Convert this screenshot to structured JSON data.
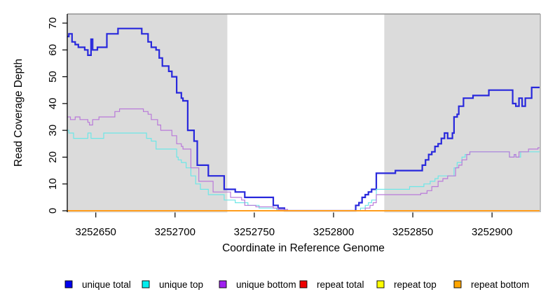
{
  "chart_data": {
    "type": "line",
    "step": "after",
    "title": "",
    "xlabel": "Coordinate in Reference Genome",
    "ylabel": "Read Coverage Depth",
    "xlim": [
      3252632,
      3252930
    ],
    "ylim": [
      0,
      70
    ],
    "x_ticks": [
      3252650,
      3252700,
      3252750,
      3252800,
      3252850,
      3252900
    ],
    "y_ticks": [
      0,
      10,
      20,
      30,
      40,
      50,
      60,
      70
    ],
    "grid": false,
    "legend_position": "bottom",
    "shaded_regions": [
      {
        "from": 3252632,
        "to": 3252733,
        "color": "#dbdbdb"
      },
      {
        "from": 3252832,
        "to": 3252930,
        "color": "#dbdbdb"
      }
    ],
    "series": [
      {
        "name": "unique total",
        "color": "#2828dc",
        "legend_color": "#0000ee",
        "width": 2.2,
        "points": [
          [
            3252632,
            65
          ],
          [
            3252633,
            66
          ],
          [
            3252635,
            63
          ],
          [
            3252637,
            62
          ],
          [
            3252639,
            61
          ],
          [
            3252643,
            60
          ],
          [
            3252645,
            58
          ],
          [
            3252647,
            64
          ],
          [
            3252648,
            60
          ],
          [
            3252651,
            61
          ],
          [
            3252657,
            66
          ],
          [
            3252664,
            68
          ],
          [
            3252679,
            66
          ],
          [
            3252683,
            63
          ],
          [
            3252685,
            61
          ],
          [
            3252688,
            60
          ],
          [
            3252690,
            57
          ],
          [
            3252692,
            54
          ],
          [
            3252696,
            52
          ],
          [
            3252698,
            50
          ],
          [
            3252701,
            44
          ],
          [
            3252704,
            42
          ],
          [
            3252705,
            41
          ],
          [
            3252708,
            30
          ],
          [
            3252712,
            26
          ],
          [
            3252714,
            17
          ],
          [
            3252721,
            13
          ],
          [
            3252731,
            8
          ],
          [
            3252738,
            7
          ],
          [
            3252744,
            5
          ],
          [
            3252762,
            2
          ],
          [
            3252765,
            1
          ],
          [
            3252769,
            0
          ],
          [
            3252814,
            2
          ],
          [
            3252816,
            3
          ],
          [
            3252818,
            5
          ],
          [
            3252820,
            6
          ],
          [
            3252822,
            7
          ],
          [
            3252824,
            8
          ],
          [
            3252827,
            14
          ],
          [
            3252839,
            15
          ],
          [
            3252856,
            17
          ],
          [
            3252858,
            19
          ],
          [
            3252860,
            21
          ],
          [
            3252862,
            22
          ],
          [
            3252864,
            24
          ],
          [
            3252866,
            25
          ],
          [
            3252868,
            27
          ],
          [
            3252870,
            29
          ],
          [
            3252872,
            27
          ],
          [
            3252875,
            29
          ],
          [
            3252876,
            35
          ],
          [
            3252878,
            36
          ],
          [
            3252879,
            39
          ],
          [
            3252882,
            42
          ],
          [
            3252888,
            43
          ],
          [
            3252898,
            45
          ],
          [
            3252913,
            40
          ],
          [
            3252915,
            39
          ],
          [
            3252917,
            42
          ],
          [
            3252919,
            39
          ],
          [
            3252921,
            42
          ],
          [
            3252925,
            46
          ]
        ]
      },
      {
        "name": "unique top",
        "color": "#6ee7e7",
        "legend_color": "#00eeee",
        "width": 1.2,
        "points": [
          [
            3252632,
            30
          ],
          [
            3252633,
            29
          ],
          [
            3252636,
            27
          ],
          [
            3252645,
            29
          ],
          [
            3252647,
            27
          ],
          [
            3252655,
            29
          ],
          [
            3252680,
            29
          ],
          [
            3252682,
            27
          ],
          [
            3252685,
            26
          ],
          [
            3252688,
            23
          ],
          [
            3252701,
            20
          ],
          [
            3252702,
            19
          ],
          [
            3252704,
            18
          ],
          [
            3252707,
            16
          ],
          [
            3252710,
            13
          ],
          [
            3252713,
            10
          ],
          [
            3252716,
            8
          ],
          [
            3252721,
            6
          ],
          [
            3252731,
            4
          ],
          [
            3252738,
            3
          ],
          [
            3252746,
            2
          ],
          [
            3252753,
            1
          ],
          [
            3252764,
            0.5
          ],
          [
            3252771,
            0
          ],
          [
            3252817,
            1
          ],
          [
            3252820,
            2
          ],
          [
            3252822,
            3
          ],
          [
            3252824,
            4
          ],
          [
            3252827,
            8
          ],
          [
            3252848,
            9
          ],
          [
            3252857,
            10
          ],
          [
            3252861,
            11
          ],
          [
            3252864,
            12
          ],
          [
            3252866,
            13
          ],
          [
            3252876,
            16
          ],
          [
            3252878,
            18
          ],
          [
            3252881,
            20
          ],
          [
            3252883,
            21
          ],
          [
            3252886,
            22
          ],
          [
            3252911,
            20
          ],
          [
            3252914,
            21
          ],
          [
            3252915,
            20
          ],
          [
            3252918,
            22
          ]
        ]
      },
      {
        "name": "unique bottom",
        "color": "#b97ad9",
        "legend_color": "#a020f0",
        "width": 1.2,
        "points": [
          [
            3252632,
            35
          ],
          [
            3252634,
            34
          ],
          [
            3252637,
            35
          ],
          [
            3252640,
            34
          ],
          [
            3252645,
            33
          ],
          [
            3252646,
            32
          ],
          [
            3252648,
            34
          ],
          [
            3252652,
            35
          ],
          [
            3252662,
            37
          ],
          [
            3252665,
            38
          ],
          [
            3252680,
            37
          ],
          [
            3252683,
            36
          ],
          [
            3252685,
            34
          ],
          [
            3252689,
            32
          ],
          [
            3252691,
            30
          ],
          [
            3252698,
            28
          ],
          [
            3252701,
            25
          ],
          [
            3252704,
            24
          ],
          [
            3252705,
            23
          ],
          [
            3252710,
            16
          ],
          [
            3252715,
            11
          ],
          [
            3252724,
            7
          ],
          [
            3252735,
            5
          ],
          [
            3252742,
            4
          ],
          [
            3252744,
            2
          ],
          [
            3252751,
            1.5
          ],
          [
            3252762,
            1
          ],
          [
            3252765,
            0.5
          ],
          [
            3252771,
            0
          ],
          [
            3252820,
            1
          ],
          [
            3252823,
            2
          ],
          [
            3252825,
            3
          ],
          [
            3252827,
            6
          ],
          [
            3252855,
            6.5
          ],
          [
            3252859,
            7.5
          ],
          [
            3252862,
            9
          ],
          [
            3252866,
            11
          ],
          [
            3252869,
            12
          ],
          [
            3252872,
            13
          ],
          [
            3252877,
            16
          ],
          [
            3252879,
            17
          ],
          [
            3252881,
            19
          ],
          [
            3252884,
            21
          ],
          [
            3252886,
            22
          ],
          [
            3252911,
            20
          ],
          [
            3252914,
            21
          ],
          [
            3252915,
            20
          ],
          [
            3252917,
            22
          ],
          [
            3252923,
            23
          ],
          [
            3252929,
            23.5
          ]
        ]
      },
      {
        "name": "repeat total",
        "color": "#dd0000",
        "legend_color": "#ee0000",
        "width": 1.2,
        "points": [
          [
            3252632,
            0
          ]
        ]
      },
      {
        "name": "repeat top",
        "color": "#ffee00",
        "legend_color": "#ffff00",
        "width": 1.2,
        "points": [
          [
            3252632,
            0
          ]
        ]
      },
      {
        "name": "repeat bottom",
        "color": "#ff9d1c",
        "legend_color": "#ffa500",
        "width": 2,
        "points": [
          [
            3252632,
            0
          ]
        ]
      }
    ]
  }
}
